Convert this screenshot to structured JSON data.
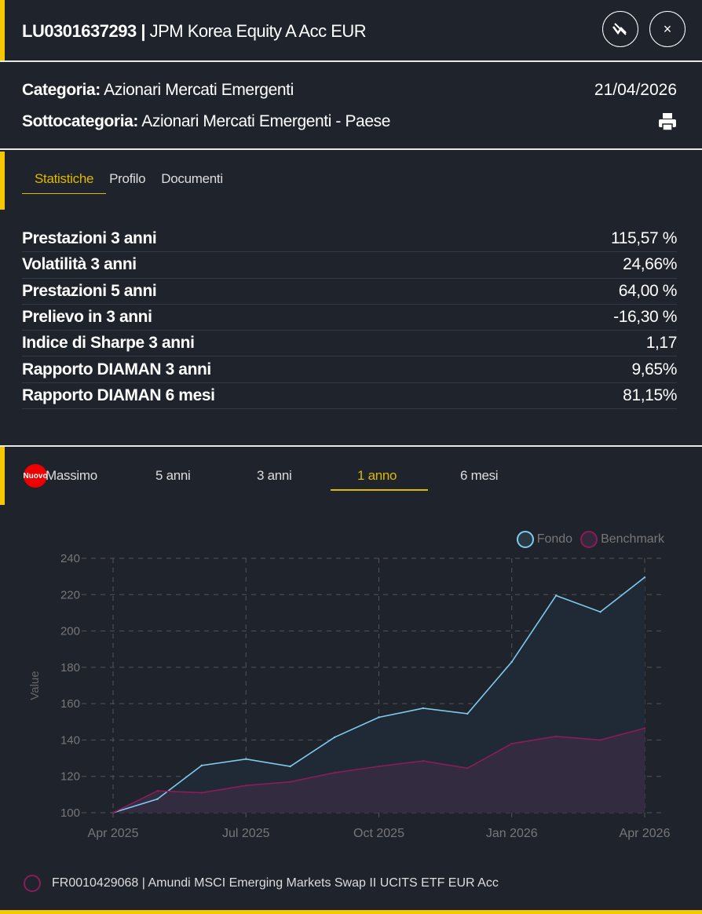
{
  "header": {
    "isin": "LU0301637293",
    "separator": "|",
    "name": "JPM Korea Equity A Acc EUR"
  },
  "info": {
    "categoria_label": "Categoria:",
    "categoria": "Azionari Mercati Emergenti",
    "sottocategoria_label": "Sottocategoria:",
    "sottocategoria": "Azionari Mercati Emergenti - Paese",
    "date": "21/04/2026"
  },
  "tabs": [
    "Statistiche",
    "Profilo",
    "Documenti"
  ],
  "stats": [
    {
      "k": "Prestazioni 3 anni",
      "v": "115,57 %"
    },
    {
      "k": "Volatilità 3 anni",
      "v": "24,66%"
    },
    {
      "k": "Prestazioni 5 anni",
      "v": "64,00 %"
    },
    {
      "k": "Prelievo in 3 anni",
      "v": "-16,30 %"
    },
    {
      "k": "Indice di Sharpe 3 anni",
      "v": "1,17"
    },
    {
      "k": "Rapporto DIAMAN 3 anni",
      "v": "9,65%"
    },
    {
      "k": "Rapporto DIAMAN 6 mesi",
      "v": "81,15%"
    }
  ],
  "periods": {
    "badge": "Nuovo",
    "items": [
      "Massimo",
      "5 anni",
      "3 anni",
      "1 anno",
      "6 mesi"
    ],
    "active": "1 anno"
  },
  "chart_data": {
    "type": "area",
    "ylabel": "Value",
    "ylim": [
      100,
      240
    ],
    "yticks": [
      100,
      120,
      140,
      160,
      180,
      200,
      220,
      240
    ],
    "xticks": [
      "Apr 2025",
      "Jul 2025",
      "Oct 2025",
      "Jan 2026",
      "Apr 2026"
    ],
    "legend": [
      "Fondo",
      "Benchmark"
    ],
    "legend_position": "top-right",
    "grid": true,
    "series": [
      {
        "name": "Fondo",
        "color": "#7ecbec",
        "values": [
          100,
          107.5,
          126,
          129.5,
          125.5,
          141.5,
          152.5,
          157.5,
          154.5,
          183,
          219.5,
          210.5,
          229.5
        ]
      },
      {
        "name": "Benchmark",
        "color": "#8a1c5a",
        "values": [
          100,
          112,
          111,
          115,
          117,
          122,
          125.5,
          128.5,
          124.5,
          138,
          142,
          140,
          146.5
        ]
      }
    ]
  },
  "benchmark_label": "FR0010429068 | Amundi MSCI Emerging Markets Swap II UCITS ETF EUR Acc"
}
